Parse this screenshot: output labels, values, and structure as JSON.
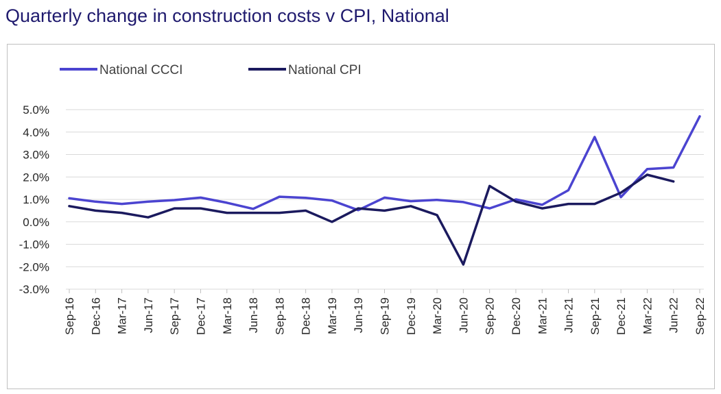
{
  "page_title": "Quarterly change in construction costs v CPI, National",
  "chart_data": {
    "type": "line",
    "title": "Quarterly change in construction costs v CPI, National",
    "xlabel": "",
    "ylabel": "",
    "ylim": [
      -3.0,
      5.0
    ],
    "y_ticks": [
      "5.0%",
      "4.0%",
      "3.0%",
      "2.0%",
      "1.0%",
      "0.0%",
      "-1.0%",
      "-2.0%",
      "-3.0%"
    ],
    "y_tick_values": [
      5,
      4,
      3,
      2,
      1,
      0,
      -1,
      -2,
      -3
    ],
    "grid": "horizontal",
    "legend_position": "top-left",
    "categories": [
      "Sep-16",
      "Dec-16",
      "Mar-17",
      "Jun-17",
      "Sep-17",
      "Dec-17",
      "Mar-18",
      "Jun-18",
      "Sep-18",
      "Dec-18",
      "Mar-19",
      "Jun-19",
      "Sep-19",
      "Dec-19",
      "Mar-20",
      "Jun-20",
      "Sep-20",
      "Dec-20",
      "Mar-21",
      "Jun-21",
      "Sep-21",
      "Dec-21",
      "Mar-22",
      "Jun-22",
      "Sep-22"
    ],
    "series": [
      {
        "name": "National CCCI",
        "color": "#4b44d0",
        "values": [
          1.05,
          0.9,
          0.8,
          0.9,
          0.97,
          1.08,
          0.85,
          0.58,
          1.12,
          1.07,
          0.95,
          0.52,
          1.08,
          0.92,
          0.98,
          0.88,
          0.6,
          1.0,
          0.76,
          1.41,
          3.78,
          1.1,
          2.35,
          2.42,
          4.7
        ]
      },
      {
        "name": "National CPI",
        "color": "#1b1a5e",
        "values": [
          0.7,
          0.5,
          0.4,
          0.2,
          0.6,
          0.6,
          0.4,
          0.4,
          0.4,
          0.5,
          0.0,
          0.6,
          0.5,
          0.7,
          0.3,
          -1.9,
          1.6,
          0.9,
          0.6,
          0.8,
          0.8,
          1.3,
          2.1,
          1.8,
          null
        ]
      }
    ]
  }
}
